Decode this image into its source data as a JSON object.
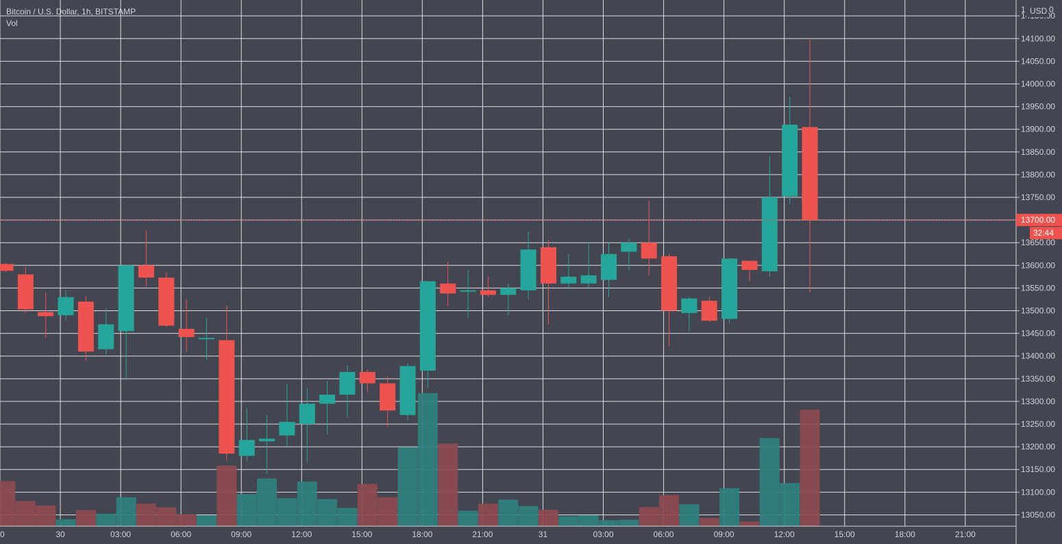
{
  "legend": {
    "symbol_line": "Bitcoin / U.S. Dollar, 1h, BITSTAMP",
    "volume_label": "Vol"
  },
  "currency": "USD",
  "colors": {
    "background": "#434651",
    "grid": "#e6e6e6",
    "up": "#26a69a",
    "down": "#ef5350",
    "volume_up": "#2f7f7d",
    "volume_down": "#8d4a50",
    "text": "#d1d4dc",
    "last_price_label": "#ef5350"
  },
  "chart_data": {
    "type": "candlestick",
    "symbol": "BTCUSD",
    "interval": "1h",
    "x_axis_labels": [
      {
        "label": "0",
        "index": 0
      },
      {
        "label": "30",
        "index": 3
      },
      {
        "label": "03:00",
        "index": 6
      },
      {
        "label": "06:00",
        "index": 9
      },
      {
        "label": "09:00",
        "index": 12
      },
      {
        "label": "12:00",
        "index": 15
      },
      {
        "label": "15:00",
        "index": 18
      },
      {
        "label": "18:00",
        "index": 21
      },
      {
        "label": "21:00",
        "index": 24
      },
      {
        "label": "31",
        "index": 27
      },
      {
        "label": "03:00",
        "index": 30
      },
      {
        "label": "06:00",
        "index": 33
      },
      {
        "label": "09:00",
        "index": 36
      },
      {
        "label": "12:00",
        "index": 39
      },
      {
        "label": "15:00",
        "index": 42
      },
      {
        "label": "18:00",
        "index": 45
      },
      {
        "label": "21:00",
        "index": 48
      }
    ],
    "y_ticks": [
      14150,
      14100,
      14050,
      14000,
      13950,
      13900,
      13850,
      13800,
      13750,
      13700,
      13650,
      13600,
      13550,
      13500,
      13450,
      13400,
      13350,
      13300,
      13250,
      13200,
      13150,
      13100,
      13050
    ],
    "y_range": [
      13025,
      14185
    ],
    "top_tick_partial": "1",
    "top_tick_partial_right": "0",
    "last_price": {
      "value": "13700.00",
      "countdown": "32:44",
      "price": 13700
    },
    "candles": [
      {
        "o": 13603,
        "h": 13605,
        "l": 13585,
        "c": 13588,
        "v": 98
      },
      {
        "o": 13580,
        "h": 13597,
        "l": 13495,
        "c": 13503,
        "v": 55
      },
      {
        "o": 13497,
        "h": 13540,
        "l": 13440,
        "c": 13488,
        "v": 45
      },
      {
        "o": 13490,
        "h": 13545,
        "l": 13480,
        "c": 13530,
        "v": 15
      },
      {
        "o": 13520,
        "h": 13532,
        "l": 13390,
        "c": 13410,
        "v": 35
      },
      {
        "o": 13415,
        "h": 13505,
        "l": 13402,
        "c": 13470,
        "v": 27
      },
      {
        "o": 13455,
        "h": 13600,
        "l": 13350,
        "c": 13600,
        "v": 63
      },
      {
        "o": 13600,
        "h": 13678,
        "l": 13553,
        "c": 13573,
        "v": 49
      },
      {
        "o": 13573,
        "h": 13585,
        "l": 13465,
        "c": 13467,
        "v": 41
      },
      {
        "o": 13460,
        "h": 13525,
        "l": 13410,
        "c": 13442,
        "v": 26
      },
      {
        "o": 13440,
        "h": 13485,
        "l": 13392,
        "c": 13440,
        "v": 24
      },
      {
        "o": 13435,
        "h": 13512,
        "l": 13170,
        "c": 13185,
        "v": 132
      },
      {
        "o": 13180,
        "h": 13285,
        "l": 13168,
        "c": 13215,
        "v": 70
      },
      {
        "o": 13212,
        "h": 13270,
        "l": 13140,
        "c": 13218,
        "v": 104
      },
      {
        "o": 13225,
        "h": 13340,
        "l": 13200,
        "c": 13255,
        "v": 61
      },
      {
        "o": 13250,
        "h": 13330,
        "l": 13165,
        "c": 13295,
        "v": 97
      },
      {
        "o": 13295,
        "h": 13345,
        "l": 13228,
        "c": 13315,
        "v": 59
      },
      {
        "o": 13315,
        "h": 13380,
        "l": 13265,
        "c": 13365,
        "v": 40
      },
      {
        "o": 13365,
        "h": 13370,
        "l": 13320,
        "c": 13340,
        "v": 92
      },
      {
        "o": 13340,
        "h": 13355,
        "l": 13245,
        "c": 13280,
        "v": 63
      },
      {
        "o": 13270,
        "h": 13385,
        "l": 13258,
        "c": 13378,
        "v": 172
      },
      {
        "o": 13368,
        "h": 13565,
        "l": 13330,
        "c": 13565,
        "v": 290
      },
      {
        "o": 13560,
        "h": 13608,
        "l": 13510,
        "c": 13538,
        "v": 180
      },
      {
        "o": 13542,
        "h": 13590,
        "l": 13485,
        "c": 13545,
        "v": 34
      },
      {
        "o": 13545,
        "h": 13575,
        "l": 13530,
        "c": 13535,
        "v": 49
      },
      {
        "o": 13535,
        "h": 13560,
        "l": 13490,
        "c": 13550,
        "v": 58
      },
      {
        "o": 13545,
        "h": 13675,
        "l": 13525,
        "c": 13635,
        "v": 44
      },
      {
        "o": 13640,
        "h": 13655,
        "l": 13470,
        "c": 13560,
        "v": 36
      },
      {
        "o": 13560,
        "h": 13625,
        "l": 13548,
        "c": 13575,
        "v": 22
      },
      {
        "o": 13560,
        "h": 13648,
        "l": 13550,
        "c": 13578,
        "v": 24
      },
      {
        "o": 13568,
        "h": 13650,
        "l": 13530,
        "c": 13625,
        "v": 13
      },
      {
        "o": 13630,
        "h": 13660,
        "l": 13590,
        "c": 13650,
        "v": 14
      },
      {
        "o": 13650,
        "h": 13742,
        "l": 13578,
        "c": 13615,
        "v": 42
      },
      {
        "o": 13620,
        "h": 13625,
        "l": 13422,
        "c": 13500,
        "v": 68
      },
      {
        "o": 13495,
        "h": 13530,
        "l": 13455,
        "c": 13527,
        "v": 48
      },
      {
        "o": 13522,
        "h": 13530,
        "l": 13475,
        "c": 13478,
        "v": 18
      },
      {
        "o": 13482,
        "h": 13615,
        "l": 13472,
        "c": 13615,
        "v": 83
      },
      {
        "o": 13610,
        "h": 13610,
        "l": 13565,
        "c": 13590,
        "v": 10
      },
      {
        "o": 13587,
        "h": 13840,
        "l": 13575,
        "c": 13750,
        "v": 192
      },
      {
        "o": 13752,
        "h": 13972,
        "l": 13735,
        "c": 13910,
        "v": 94
      },
      {
        "o": 13905,
        "h": 14100,
        "l": 13540,
        "c": 13700,
        "v": 254
      }
    ]
  }
}
